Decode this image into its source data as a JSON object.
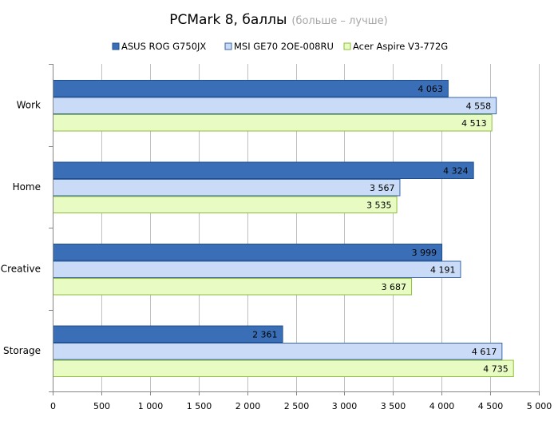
{
  "chart_data": {
    "type": "bar",
    "orientation": "horizontal",
    "title": "PCMark 8, баллы",
    "subtitle": "(больше – лучше)",
    "categories": [
      "Work",
      "Home",
      "Creative",
      "Storage"
    ],
    "series": [
      {
        "name": "ASUS ROG G750JX",
        "values": [
          4063,
          4324,
          3999,
          2361
        ],
        "labels": [
          "4 063",
          "4 324",
          "3 999",
          "2 361"
        ],
        "color": "#3a6fb7",
        "border": "#1f4e8c"
      },
      {
        "name": "MSI GE70 2OE-008RU",
        "values": [
          4558,
          3567,
          4191,
          4617
        ],
        "labels": [
          "4 558",
          "3 567",
          "4 191",
          "4 617"
        ],
        "color": "#c9dbf6",
        "border": "#3b66a8"
      },
      {
        "name": "Acer Aspire V3-772G",
        "values": [
          4513,
          3535,
          3687,
          4735
        ],
        "labels": [
          "4 513",
          "3 535",
          "3 687",
          "4 735"
        ],
        "color": "#e8fbc2",
        "border": "#8fbf3a"
      }
    ],
    "xlim": [
      0,
      5000
    ],
    "xticks": [
      0,
      500,
      1000,
      1500,
      2000,
      2500,
      3000,
      3500,
      4000,
      4500,
      5000
    ],
    "xtick_labels": [
      "0",
      "500",
      "1 000",
      "1 500",
      "2 000",
      "2 500",
      "3 000",
      "3 500",
      "4 000",
      "4 500",
      "5 000"
    ],
    "grid": true,
    "legend_position": "top"
  }
}
